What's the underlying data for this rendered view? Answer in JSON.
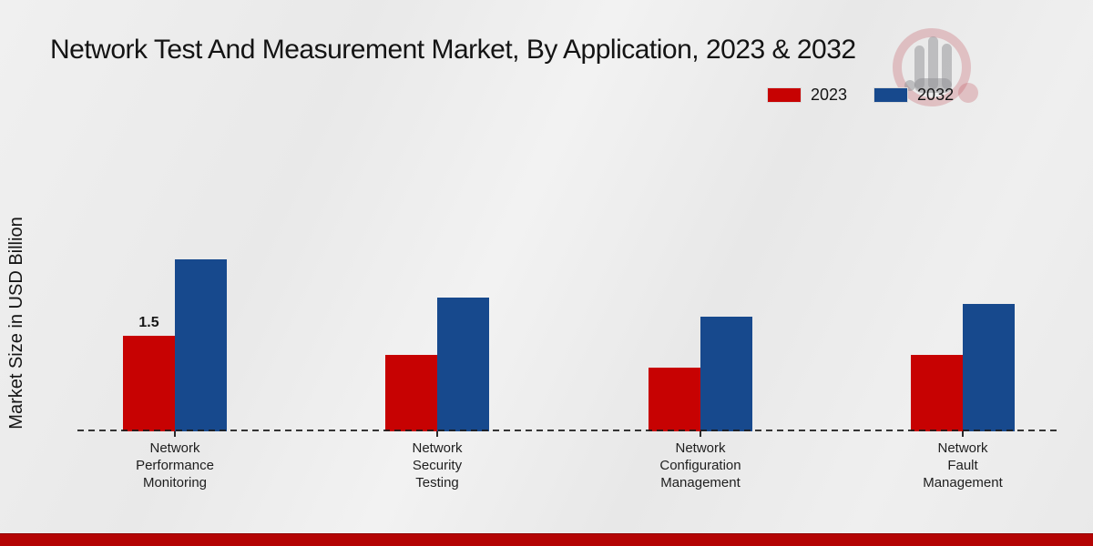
{
  "title": "Network Test And Measurement Market, By Application, 2023 & 2032",
  "ylabel": "Market Size in USD Billion",
  "legend": {
    "items": [
      {
        "label": "2023",
        "color": "#c70202"
      },
      {
        "label": "2032",
        "color": "#17498d"
      }
    ]
  },
  "colors": {
    "bar_2023": "#c70202",
    "bar_2032": "#17498d",
    "footer_band": "#b40404",
    "background": "#ececec",
    "text": "#141414"
  },
  "chart_data": {
    "type": "bar",
    "categories": [
      "Network Performance Monitoring",
      "Network Security Testing",
      "Network Configuration Management",
      "Network Fault Management"
    ],
    "category_label_lines": [
      [
        "Network",
        "Performance",
        "Monitoring"
      ],
      [
        "Network",
        "Security",
        "Testing"
      ],
      [
        "Network",
        "Configuration",
        "Management"
      ],
      [
        "Network",
        "Fault",
        "Management"
      ]
    ],
    "series": [
      {
        "name": "2023",
        "color": "#c70202",
        "values": [
          1.5,
          1.2,
          1.0,
          1.2
        ]
      },
      {
        "name": "2032",
        "color": "#17498d",
        "values": [
          2.7,
          2.1,
          1.8,
          2.0
        ]
      }
    ],
    "data_labels": [
      {
        "series_index": 0,
        "category_index": 0,
        "text": "1.5"
      }
    ],
    "ylim": [
      0,
      3
    ],
    "xlabel": "",
    "grid": false,
    "baseline_style": "dashed",
    "legend_position": "top-right"
  }
}
